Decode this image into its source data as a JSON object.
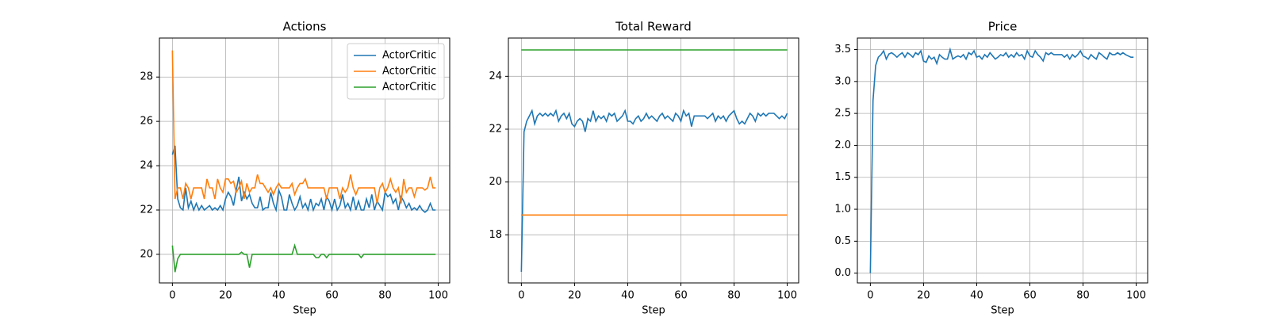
{
  "chart_data": [
    {
      "type": "line",
      "title": "Actions",
      "xlabel": "Step",
      "x": [
        0,
        1,
        2,
        3,
        4,
        5,
        6,
        7,
        8,
        9,
        10,
        11,
        12,
        13,
        14,
        15,
        16,
        17,
        18,
        19,
        20,
        21,
        22,
        23,
        24,
        25,
        26,
        27,
        28,
        29,
        30,
        31,
        32,
        33,
        34,
        35,
        36,
        37,
        38,
        39,
        40,
        41,
        42,
        43,
        44,
        45,
        46,
        47,
        48,
        49,
        50,
        51,
        52,
        53,
        54,
        55,
        56,
        57,
        58,
        59,
        60,
        61,
        62,
        63,
        64,
        65,
        66,
        67,
        68,
        69,
        70,
        71,
        72,
        73,
        74,
        75,
        76,
        77,
        78,
        79,
        80,
        81,
        82,
        83,
        84,
        85,
        86,
        87,
        88,
        89,
        90,
        91,
        92,
        93,
        94,
        95,
        96,
        97,
        98,
        99
      ],
      "series": [
        {
          "name": "ActorCritic",
          "color": "#1f77b4",
          "values": [
            24.5,
            24.9,
            22.5,
            22.1,
            22.0,
            23.0,
            22.1,
            22.4,
            22.0,
            22.3,
            22.0,
            22.2,
            22.0,
            22.1,
            22.2,
            22.0,
            22.1,
            22.0,
            22.2,
            22.0,
            22.5,
            22.8,
            22.6,
            22.2,
            22.9,
            23.5,
            22.4,
            22.8,
            22.5,
            22.7,
            22.3,
            22.1,
            22.1,
            22.6,
            22.0,
            22.1,
            22.1,
            22.8,
            22.3,
            22.0,
            22.9,
            22.6,
            22.0,
            22.0,
            22.7,
            22.3,
            22.0,
            22.2,
            22.6,
            22.1,
            22.3,
            22.0,
            22.5,
            22.0,
            22.3,
            22.2,
            22.5,
            22.0,
            22.6,
            22.4,
            22.0,
            22.5,
            22.0,
            22.2,
            22.7,
            22.1,
            22.3,
            22.0,
            22.6,
            22.0,
            22.4,
            22.0,
            22.0,
            22.5,
            22.1,
            22.7,
            22.0,
            22.4,
            22.2,
            22.0,
            22.8,
            22.6,
            22.7,
            22.3,
            22.5,
            22.0,
            22.6,
            22.4,
            22.1,
            22.3,
            22.0,
            22.1,
            22.0,
            22.2,
            22.0,
            21.9,
            22.0,
            22.3,
            22.0,
            22.0
          ]
        },
        {
          "name": "ActorCritic",
          "color": "#ff7f0e",
          "values": [
            29.2,
            22.5,
            23.0,
            23.0,
            22.5,
            23.2,
            23.0,
            22.5,
            23.0,
            23.0,
            23.0,
            23.0,
            22.5,
            23.4,
            23.0,
            23.0,
            22.5,
            23.4,
            23.0,
            22.8,
            23.4,
            23.4,
            23.2,
            23.3,
            22.8,
            23.0,
            23.3,
            22.5,
            23.2,
            22.8,
            23.0,
            23.0,
            23.6,
            23.2,
            23.2,
            23.0,
            22.8,
            23.0,
            22.7,
            23.0,
            23.2,
            23.0,
            23.0,
            23.0,
            23.0,
            23.2,
            22.7,
            23.0,
            23.2,
            23.2,
            23.4,
            23.0,
            23.0,
            23.0,
            23.0,
            23.0,
            23.0,
            23.0,
            22.5,
            23.0,
            23.0,
            23.0,
            23.0,
            22.5,
            23.0,
            22.8,
            23.0,
            23.6,
            23.0,
            22.7,
            23.0,
            23.0,
            23.0,
            23.0,
            23.0,
            23.0,
            23.0,
            22.3,
            23.0,
            23.2,
            22.8,
            23.0,
            23.4,
            23.0,
            22.8,
            23.0,
            22.3,
            23.4,
            22.8,
            23.0,
            23.0,
            22.6,
            23.0,
            23.0,
            23.0,
            22.9,
            23.0,
            23.5,
            23.0,
            23.0
          ]
        },
        {
          "name": "ActorCritic",
          "color": "#2ca02c",
          "values": [
            20.4,
            19.2,
            19.8,
            20.0,
            20.0,
            20.0,
            20.0,
            20.0,
            20.0,
            20.0,
            20.0,
            20.0,
            20.0,
            20.0,
            20.0,
            20.0,
            20.0,
            20.0,
            20.0,
            20.0,
            20.0,
            20.0,
            20.0,
            20.0,
            20.0,
            20.0,
            20.1,
            20.0,
            20.0,
            19.4,
            20.0,
            20.0,
            20.0,
            20.0,
            20.0,
            20.0,
            20.0,
            20.0,
            20.0,
            20.0,
            20.0,
            20.0,
            20.0,
            20.0,
            20.0,
            20.0,
            20.4,
            20.0,
            20.0,
            20.0,
            20.0,
            20.0,
            20.0,
            20.0,
            19.85,
            19.85,
            20.0,
            20.0,
            19.85,
            20.0,
            20.0,
            20.0,
            20.0,
            20.0,
            20.0,
            20.0,
            20.0,
            20.0,
            20.0,
            20.0,
            20.0,
            19.85,
            20.0,
            20.0,
            20.0,
            20.0,
            20.0,
            20.0,
            20.0,
            20.0,
            20.0,
            20.0,
            20.0,
            20.0,
            20.0,
            20.0,
            20.0,
            20.0,
            20.0,
            20.0,
            20.0,
            20.0,
            20.0,
            20.0,
            20.0,
            20.0,
            20.0,
            20.0,
            20.0,
            20.0
          ]
        }
      ],
      "xlim": [
        -4.88,
        104.3
      ],
      "xticks": [
        0,
        20,
        40,
        60,
        80,
        100
      ],
      "ylim": [
        18.71,
        29.76
      ],
      "yticks": [
        20,
        22,
        24,
        26,
        28
      ],
      "grid": true,
      "legend": "upper right"
    },
    {
      "type": "line",
      "title": "Total Reward",
      "xlabel": "Step",
      "x": [
        0,
        1,
        2,
        3,
        4,
        5,
        6,
        7,
        8,
        9,
        10,
        11,
        12,
        13,
        14,
        15,
        16,
        17,
        18,
        19,
        20,
        21,
        22,
        23,
        24,
        25,
        26,
        27,
        28,
        29,
        30,
        31,
        32,
        33,
        34,
        35,
        36,
        37,
        38,
        39,
        40,
        41,
        42,
        43,
        44,
        45,
        46,
        47,
        48,
        49,
        50,
        51,
        52,
        53,
        54,
        55,
        56,
        57,
        58,
        59,
        60,
        61,
        62,
        63,
        64,
        65,
        66,
        67,
        68,
        69,
        70,
        71,
        72,
        73,
        74,
        75,
        76,
        77,
        78,
        79,
        80,
        81,
        82,
        83,
        84,
        85,
        86,
        87,
        88,
        89,
        90,
        91,
        92,
        93,
        94,
        95,
        96,
        97,
        98,
        99,
        100
      ],
      "series": [
        {
          "color": "#1f77b4",
          "values": [
            16.6,
            21.9,
            22.3,
            22.5,
            22.7,
            22.2,
            22.5,
            22.6,
            22.5,
            22.6,
            22.5,
            22.6,
            22.5,
            22.7,
            22.3,
            22.5,
            22.6,
            22.4,
            22.6,
            22.2,
            22.1,
            22.3,
            22.4,
            22.3,
            21.9,
            22.4,
            22.3,
            22.7,
            22.3,
            22.5,
            22.4,
            22.5,
            22.3,
            22.6,
            22.5,
            22.6,
            22.3,
            22.4,
            22.5,
            22.7,
            22.3,
            22.3,
            22.2,
            22.4,
            22.5,
            22.3,
            22.4,
            22.6,
            22.4,
            22.5,
            22.4,
            22.3,
            22.5,
            22.6,
            22.4,
            22.5,
            22.4,
            22.3,
            22.6,
            22.5,
            22.3,
            22.7,
            22.5,
            22.6,
            22.1,
            22.5,
            22.5,
            22.5,
            22.5,
            22.5,
            22.4,
            22.5,
            22.6,
            22.3,
            22.5,
            22.4,
            22.5,
            22.3,
            22.5,
            22.6,
            22.7,
            22.4,
            22.2,
            22.3,
            22.2,
            22.4,
            22.6,
            22.5,
            22.3,
            22.6,
            22.5,
            22.6,
            22.5,
            22.6,
            22.6,
            22.6,
            22.5,
            22.4,
            22.5,
            22.4,
            22.6
          ]
        },
        {
          "color": "#ff7f0e",
          "values": [
            18.75,
            18.75,
            18.75,
            18.75,
            18.75,
            18.75,
            18.75,
            18.75,
            18.75,
            18.75,
            18.75,
            18.75,
            18.75,
            18.75,
            18.75,
            18.75,
            18.75,
            18.75,
            18.75,
            18.75,
            18.75,
            18.75,
            18.75,
            18.75,
            18.75,
            18.75,
            18.75,
            18.75,
            18.75,
            18.75,
            18.75,
            18.75,
            18.75,
            18.75,
            18.75,
            18.75,
            18.75,
            18.75,
            18.75,
            18.75,
            18.75,
            18.75,
            18.75,
            18.75,
            18.75,
            18.75,
            18.75,
            18.75,
            18.75,
            18.75,
            18.75,
            18.75,
            18.75,
            18.75,
            18.75,
            18.75,
            18.75,
            18.75,
            18.75,
            18.75,
            18.75,
            18.75,
            18.75,
            18.75,
            18.75,
            18.75,
            18.75,
            18.75,
            18.75,
            18.75,
            18.75,
            18.75,
            18.75,
            18.75,
            18.75,
            18.75,
            18.75,
            18.75,
            18.75,
            18.75,
            18.75,
            18.75,
            18.75,
            18.75,
            18.75,
            18.75,
            18.75,
            18.75,
            18.75,
            18.75,
            18.75,
            18.75,
            18.75,
            18.75,
            18.75,
            18.75,
            18.75,
            18.75,
            18.75,
            18.75,
            18.75
          ]
        },
        {
          "color": "#2ca02c",
          "values": [
            25,
            25,
            25,
            25,
            25,
            25,
            25,
            25,
            25,
            25,
            25,
            25,
            25,
            25,
            25,
            25,
            25,
            25,
            25,
            25,
            25,
            25,
            25,
            25,
            25,
            25,
            25,
            25,
            25,
            25,
            25,
            25,
            25,
            25,
            25,
            25,
            25,
            25,
            25,
            25,
            25,
            25,
            25,
            25,
            25,
            25,
            25,
            25,
            25,
            25,
            25,
            25,
            25,
            25,
            25,
            25,
            25,
            25,
            25,
            25,
            25,
            25,
            25,
            25,
            25,
            25,
            25,
            25,
            25,
            25,
            25,
            25,
            25,
            25,
            25,
            25,
            25,
            25,
            25,
            25,
            25,
            25,
            25,
            25,
            25,
            25,
            25,
            25,
            25,
            25,
            25,
            25,
            25,
            25,
            25,
            25,
            25,
            25,
            25,
            25,
            25
          ]
        }
      ],
      "xlim": [
        -4.88,
        104.3
      ],
      "xticks": [
        0,
        20,
        40,
        60,
        80,
        100
      ],
      "ylim": [
        16.18,
        25.45
      ],
      "yticks": [
        18,
        20,
        22,
        24
      ],
      "grid": true
    },
    {
      "type": "line",
      "title": "Price",
      "xlabel": "Step",
      "x": [
        0,
        1,
        2,
        3,
        4,
        5,
        6,
        7,
        8,
        9,
        10,
        11,
        12,
        13,
        14,
        15,
        16,
        17,
        18,
        19,
        20,
        21,
        22,
        23,
        24,
        25,
        26,
        27,
        28,
        29,
        30,
        31,
        32,
        33,
        34,
        35,
        36,
        37,
        38,
        39,
        40,
        41,
        42,
        43,
        44,
        45,
        46,
        47,
        48,
        49,
        50,
        51,
        52,
        53,
        54,
        55,
        56,
        57,
        58,
        59,
        60,
        61,
        62,
        63,
        64,
        65,
        66,
        67,
        68,
        69,
        70,
        71,
        72,
        73,
        74,
        75,
        76,
        77,
        78,
        79,
        80,
        81,
        82,
        83,
        84,
        85,
        86,
        87,
        88,
        89,
        90,
        91,
        92,
        93,
        94,
        95,
        96,
        97,
        98,
        99
      ],
      "series": [
        {
          "color": "#1f77b4",
          "values": [
            0.0,
            2.7,
            3.25,
            3.38,
            3.42,
            3.48,
            3.35,
            3.43,
            3.45,
            3.42,
            3.38,
            3.42,
            3.45,
            3.38,
            3.45,
            3.42,
            3.38,
            3.45,
            3.42,
            3.48,
            3.32,
            3.3,
            3.4,
            3.35,
            3.38,
            3.28,
            3.42,
            3.38,
            3.35,
            3.35,
            3.5,
            3.35,
            3.38,
            3.4,
            3.38,
            3.42,
            3.35,
            3.45,
            3.42,
            3.48,
            3.38,
            3.4,
            3.35,
            3.42,
            3.38,
            3.45,
            3.4,
            3.35,
            3.38,
            3.42,
            3.4,
            3.45,
            3.38,
            3.42,
            3.38,
            3.45,
            3.4,
            3.42,
            3.35,
            3.48,
            3.4,
            3.38,
            3.48,
            3.42,
            3.38,
            3.32,
            3.45,
            3.42,
            3.45,
            3.42,
            3.42,
            3.42,
            3.42,
            3.38,
            3.42,
            3.35,
            3.42,
            3.38,
            3.42,
            3.48,
            3.4,
            3.38,
            3.35,
            3.42,
            3.38,
            3.35,
            3.45,
            3.42,
            3.38,
            3.35,
            3.45,
            3.42,
            3.42,
            3.45,
            3.42,
            3.45,
            3.42,
            3.4,
            3.38,
            3.38
          ]
        }
      ],
      "xlim": [
        -4.88,
        104.3
      ],
      "xticks": [
        0,
        20,
        40,
        60,
        80,
        100
      ],
      "ylim": [
        -0.153,
        3.68
      ],
      "yticks": [
        {
          "value": 0,
          "label": "0.0"
        },
        0.5,
        {
          "value": 1,
          "label": "1.0"
        },
        1.5,
        {
          "value": 2,
          "label": "2.0"
        },
        2.5,
        {
          "value": 3,
          "label": "3.0"
        },
        3.5
      ],
      "grid": true
    }
  ]
}
